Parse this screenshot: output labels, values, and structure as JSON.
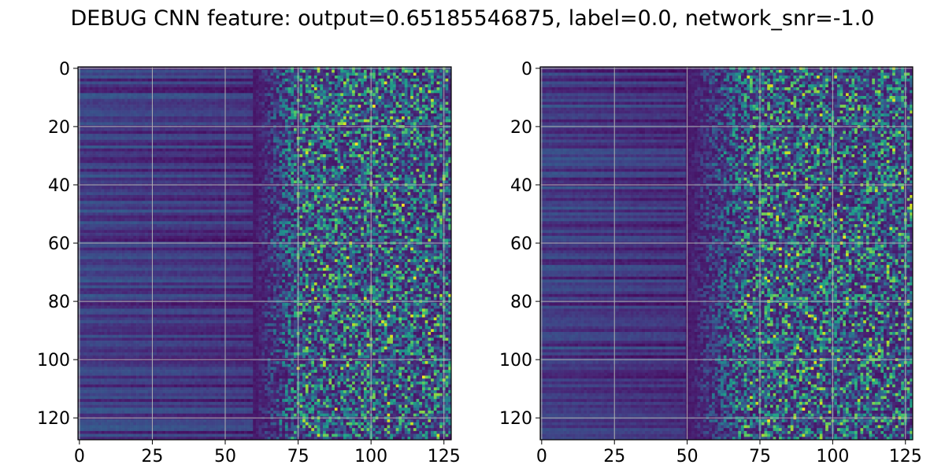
{
  "figure": {
    "title": "DEBUG CNN feature: output=0.65185546875, label=0.0, network_snr=-1.0"
  },
  "chart_data": [
    {
      "type": "heatmap",
      "panel": "left",
      "rows": 128,
      "cols": 128,
      "xlim": [
        0,
        127
      ],
      "ylim": [
        127,
        0
      ],
      "xticks": [
        0,
        25,
        50,
        75,
        100,
        125
      ],
      "yticks": [
        0,
        20,
        40,
        60,
        80,
        100,
        120
      ],
      "grid": true,
      "colormap": "viridis",
      "seed": 7,
      "noise_onset_col": 60,
      "bright_onset_col": 75,
      "hotspots": [
        [
          13,
          101
        ],
        [
          26,
          95
        ],
        [
          26,
          103
        ],
        [
          72,
          115
        ],
        [
          106,
          118
        ],
        [
          47,
          111
        ]
      ]
    },
    {
      "type": "heatmap",
      "panel": "right",
      "rows": 128,
      "cols": 128,
      "xlim": [
        0,
        127
      ],
      "ylim": [
        127,
        0
      ],
      "xticks": [
        0,
        25,
        50,
        75,
        100,
        125
      ],
      "yticks": [
        0,
        20,
        40,
        60,
        80,
        100,
        120
      ],
      "grid": true,
      "colormap": "viridis",
      "seed": 19,
      "noise_onset_col": 50,
      "bright_onset_col": 70,
      "hotspots": [
        [
          121,
          78
        ],
        [
          117,
          90
        ],
        [
          86,
          94
        ],
        [
          58,
          104
        ],
        [
          43,
          88
        ],
        [
          62,
          82
        ]
      ]
    }
  ]
}
